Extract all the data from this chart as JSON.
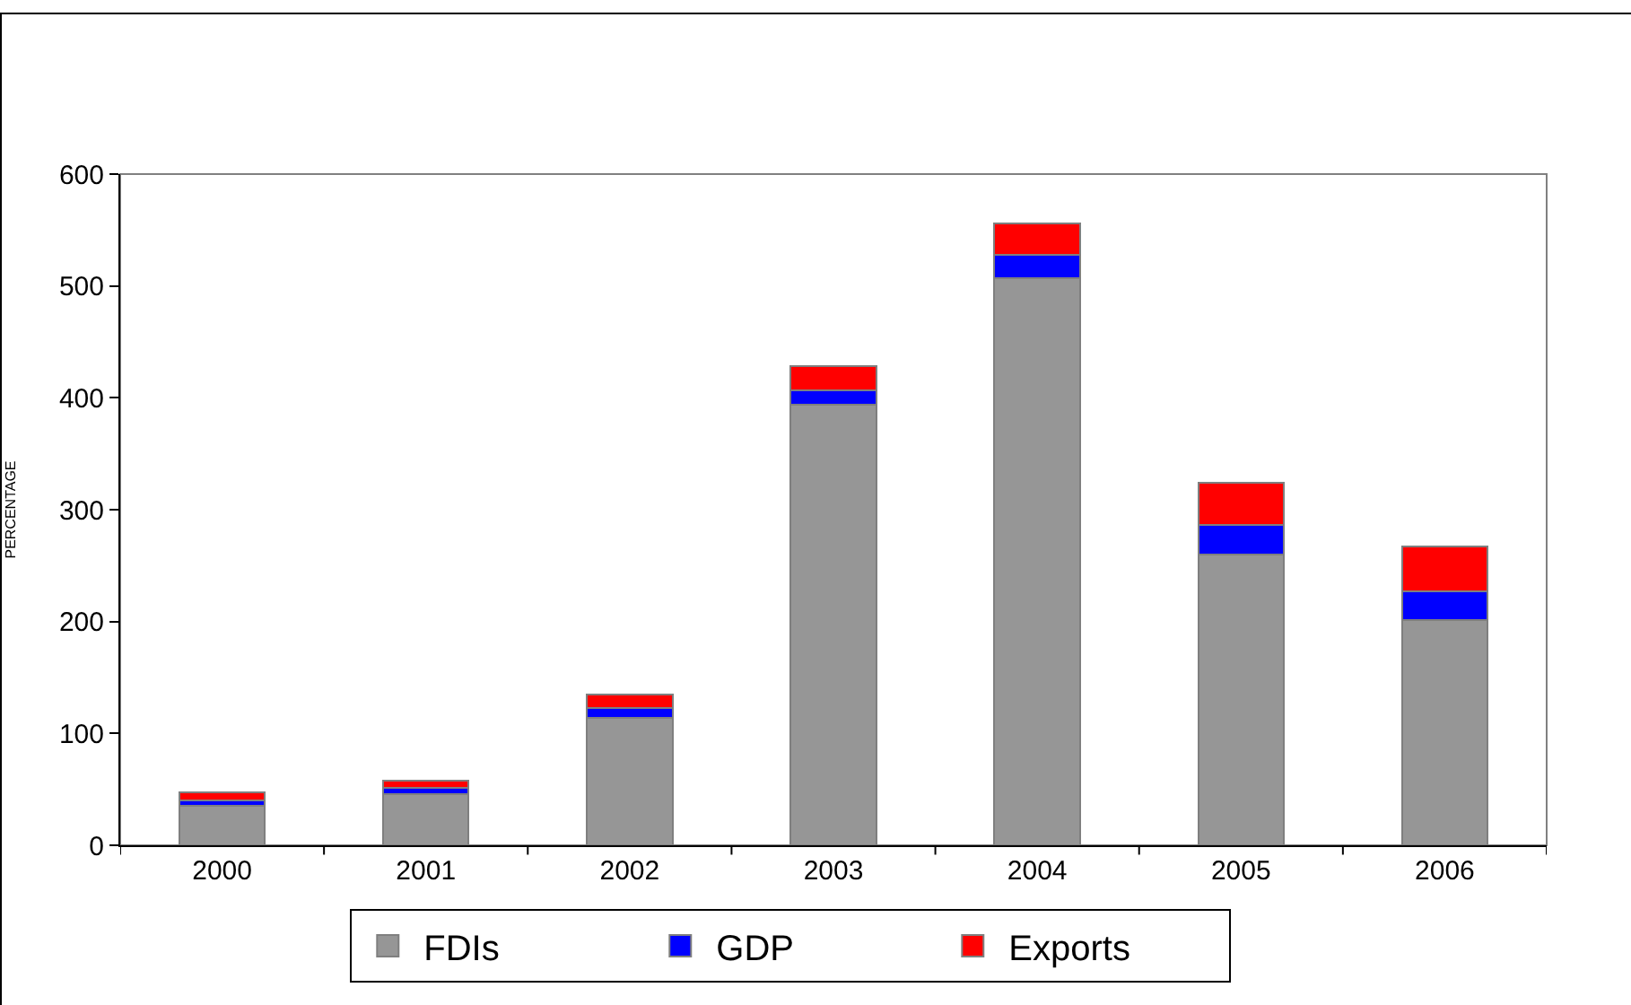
{
  "chart_data": {
    "type": "bar",
    "stacked": true,
    "ylabel": "PERCENTAGE",
    "categories": [
      "2000",
      "2001",
      "2002",
      "2003",
      "2004",
      "2005",
      "2006"
    ],
    "series": [
      {
        "name": "FDIs",
        "color": "#969696",
        "values": [
          35,
          46,
          114,
          394,
          507,
          260,
          201
        ]
      },
      {
        "name": "GDP",
        "color": "#0000ff",
        "values": [
          5,
          5,
          9,
          13,
          21,
          26,
          26
        ]
      },
      {
        "name": "Exports",
        "color": "#ff0000",
        "values": [
          7,
          7,
          12,
          21,
          28,
          38,
          40
        ]
      }
    ],
    "ylim": [
      0,
      600
    ],
    "yticks": [
      0,
      100,
      200,
      300,
      400,
      500,
      600
    ],
    "legend": "bottom"
  }
}
